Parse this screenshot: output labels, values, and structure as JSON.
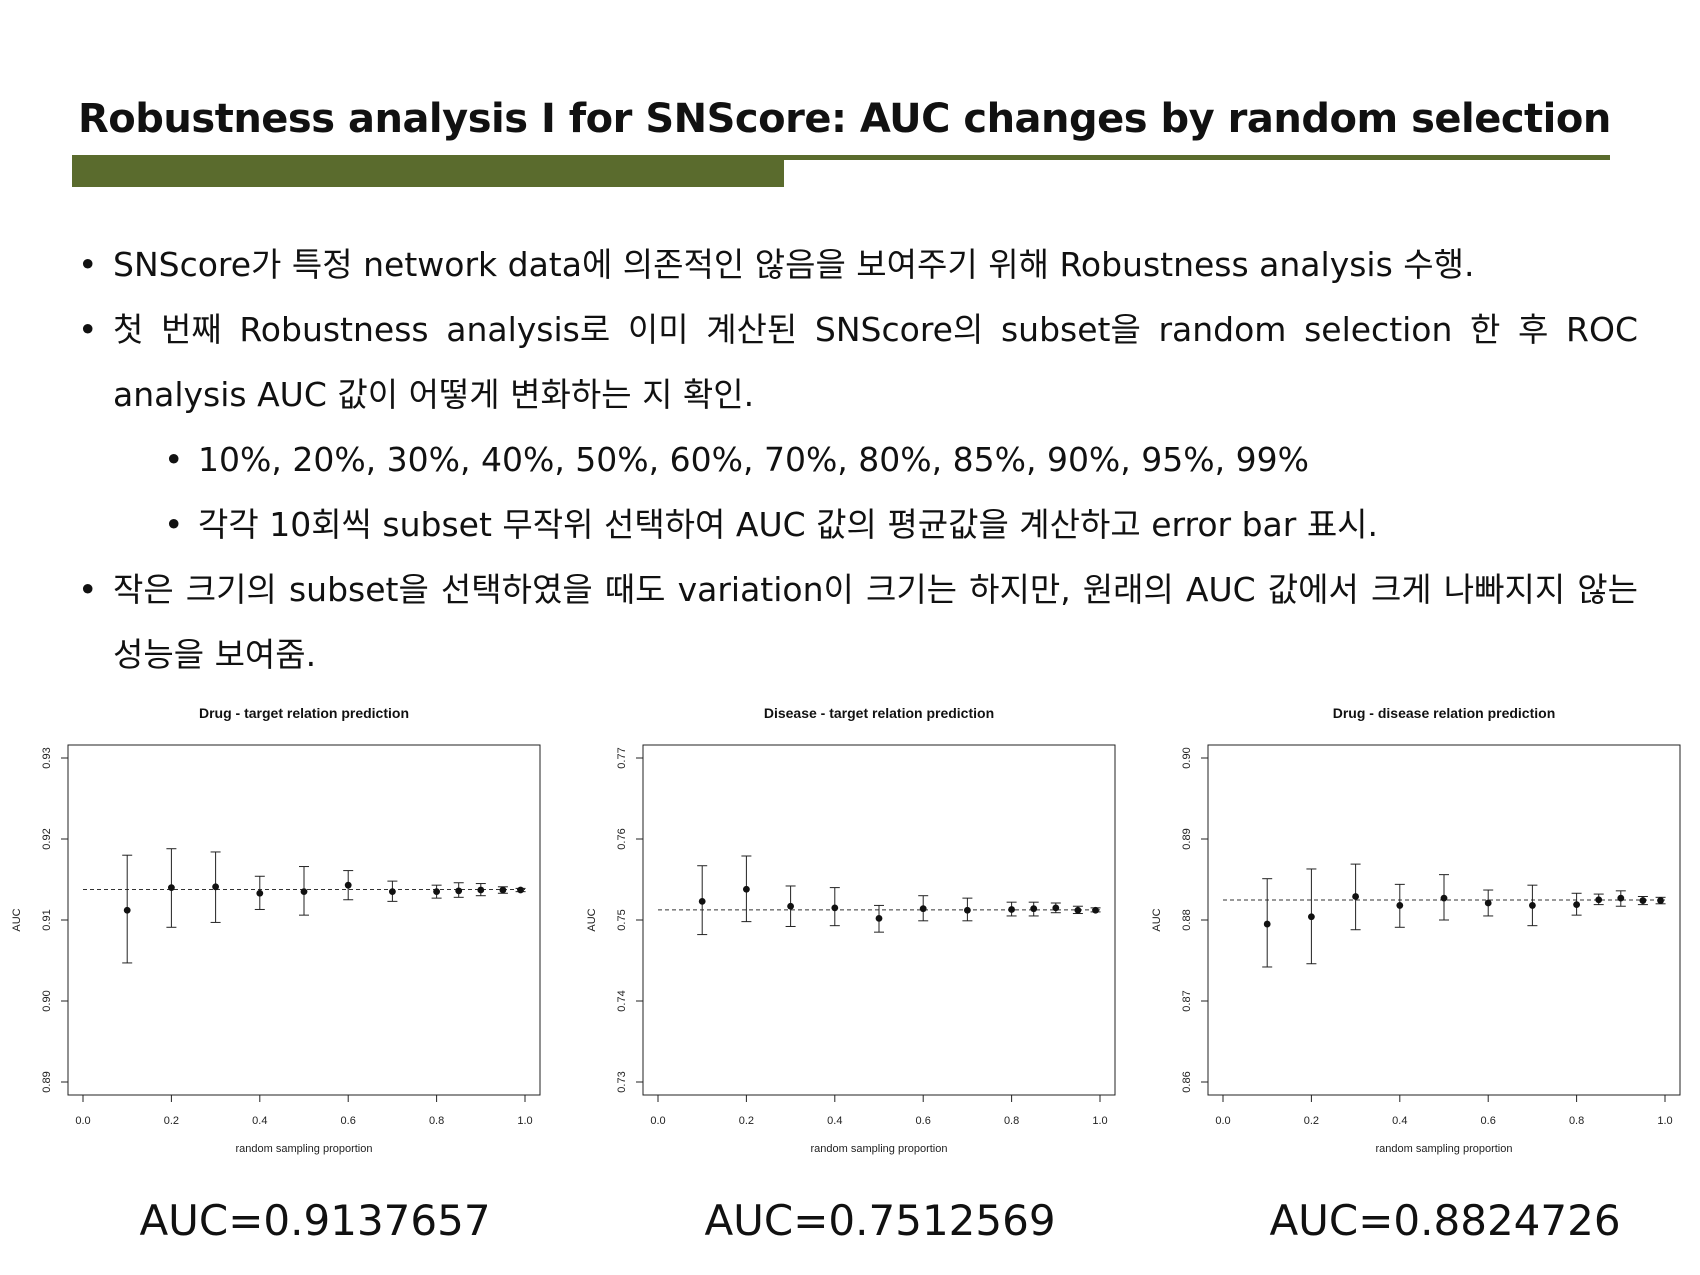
{
  "title": "Robustness analysis I for SNScore: AUC changes by random selection",
  "bullets": {
    "b1": "SNScore가 특정 network data에 의존적인 않음을 보여주기 위해 Robustness analysis 수행.",
    "b2": "첫 번째 Robustness analysis로 이미 계산된 SNScore의 subset을 random selection 한 후 ROC analysis AUC 값이 어떻게 변화하는 지 확인.",
    "b2_sub1": "10%, 20%, 30%, 40%, 50%, 60%, 70%, 80%, 85%, 90%, 95%, 99%",
    "b2_sub2": "각각 10회씩 subset 무작위 선택하여 AUC 값의 평균값을 계산하고 error bar 표시.",
    "b3": "작은 크기의 subset을 선택하였을 때도 variation이 크기는 하지만, 원래의 AUC 값에서 크게 나빠지지 않는 성능을 보여줌."
  },
  "auc_labels": [
    "AUC=0.9137657",
    "AUC=0.7512569",
    "AUC=0.8824726"
  ],
  "chart_data": [
    {
      "type": "scatter",
      "title": "Drug - target relation prediction",
      "xlabel": "random sampling proportion",
      "ylabel": "AUC",
      "xlim": [
        0.0,
        1.0
      ],
      "ylim": [
        0.89,
        0.93
      ],
      "xticks": [
        "0.0",
        "0.2",
        "0.4",
        "0.6",
        "0.8",
        "1.0"
      ],
      "yticks": [
        "0.89",
        "0.90",
        "0.91",
        "0.92",
        "0.93"
      ],
      "reference_line": 0.9137657,
      "x": [
        0.1,
        0.2,
        0.3,
        0.4,
        0.5,
        0.6,
        0.7,
        0.8,
        0.85,
        0.9,
        0.95,
        0.99
      ],
      "y": [
        0.9112,
        0.914,
        0.9141,
        0.9133,
        0.9135,
        0.9143,
        0.9135,
        0.9135,
        0.9136,
        0.9137,
        0.9137,
        0.9137
      ],
      "y_low": [
        0.9047,
        0.9091,
        0.9097,
        0.9113,
        0.9106,
        0.9125,
        0.9123,
        0.9127,
        0.9128,
        0.913,
        0.9133,
        0.9135
      ],
      "y_high": [
        0.918,
        0.9188,
        0.9184,
        0.9154,
        0.9166,
        0.9161,
        0.9148,
        0.9143,
        0.9146,
        0.9145,
        0.9141,
        0.9139
      ]
    },
    {
      "type": "scatter",
      "title": "Disease - target relation prediction",
      "xlabel": "random sampling proportion",
      "ylabel": "AUC",
      "xlim": [
        0.0,
        1.0
      ],
      "ylim": [
        0.73,
        0.77
      ],
      "xticks": [
        "0.0",
        "0.2",
        "0.4",
        "0.6",
        "0.8",
        "1.0"
      ],
      "yticks": [
        "0.73",
        "0.74",
        "0.75",
        "0.76",
        "0.77"
      ],
      "reference_line": 0.7512569,
      "x": [
        0.1,
        0.2,
        0.3,
        0.4,
        0.5,
        0.6,
        0.7,
        0.8,
        0.85,
        0.9,
        0.95,
        0.99
      ],
      "y": [
        0.7523,
        0.7538,
        0.7517,
        0.7515,
        0.7502,
        0.7514,
        0.7512,
        0.7513,
        0.7514,
        0.7515,
        0.7512,
        0.7512
      ],
      "y_low": [
        0.7482,
        0.7498,
        0.7492,
        0.7493,
        0.7485,
        0.7499,
        0.7499,
        0.7505,
        0.7505,
        0.7509,
        0.7508,
        0.751
      ],
      "y_high": [
        0.7567,
        0.7579,
        0.7542,
        0.754,
        0.7518,
        0.753,
        0.7527,
        0.7522,
        0.7522,
        0.7521,
        0.7517,
        0.7515
      ]
    },
    {
      "type": "scatter",
      "title": "Drug - disease relation prediction",
      "xlabel": "random sampling proportion",
      "ylabel": "AUC",
      "xlim": [
        0.0,
        1.0
      ],
      "ylim": [
        0.86,
        0.9
      ],
      "xticks": [
        "0.0",
        "0.2",
        "0.4",
        "0.6",
        "0.8",
        "1.0"
      ],
      "yticks": [
        "0.86",
        "0.87",
        "0.88",
        "0.89",
        "0.90"
      ],
      "reference_line": 0.8824726,
      "x": [
        0.1,
        0.2,
        0.3,
        0.4,
        0.5,
        0.6,
        0.7,
        0.8,
        0.85,
        0.9,
        0.95,
        0.99
      ],
      "y": [
        0.8795,
        0.8804,
        0.8829,
        0.8818,
        0.8827,
        0.8821,
        0.8818,
        0.8819,
        0.8825,
        0.8827,
        0.8824,
        0.8824
      ],
      "y_low": [
        0.8742,
        0.8746,
        0.8788,
        0.8791,
        0.88,
        0.8805,
        0.8793,
        0.8806,
        0.8819,
        0.8817,
        0.8819,
        0.882
      ],
      "y_high": [
        0.8851,
        0.8863,
        0.8869,
        0.8844,
        0.8856,
        0.8837,
        0.8843,
        0.8833,
        0.8832,
        0.8836,
        0.8829,
        0.8828
      ]
    }
  ]
}
